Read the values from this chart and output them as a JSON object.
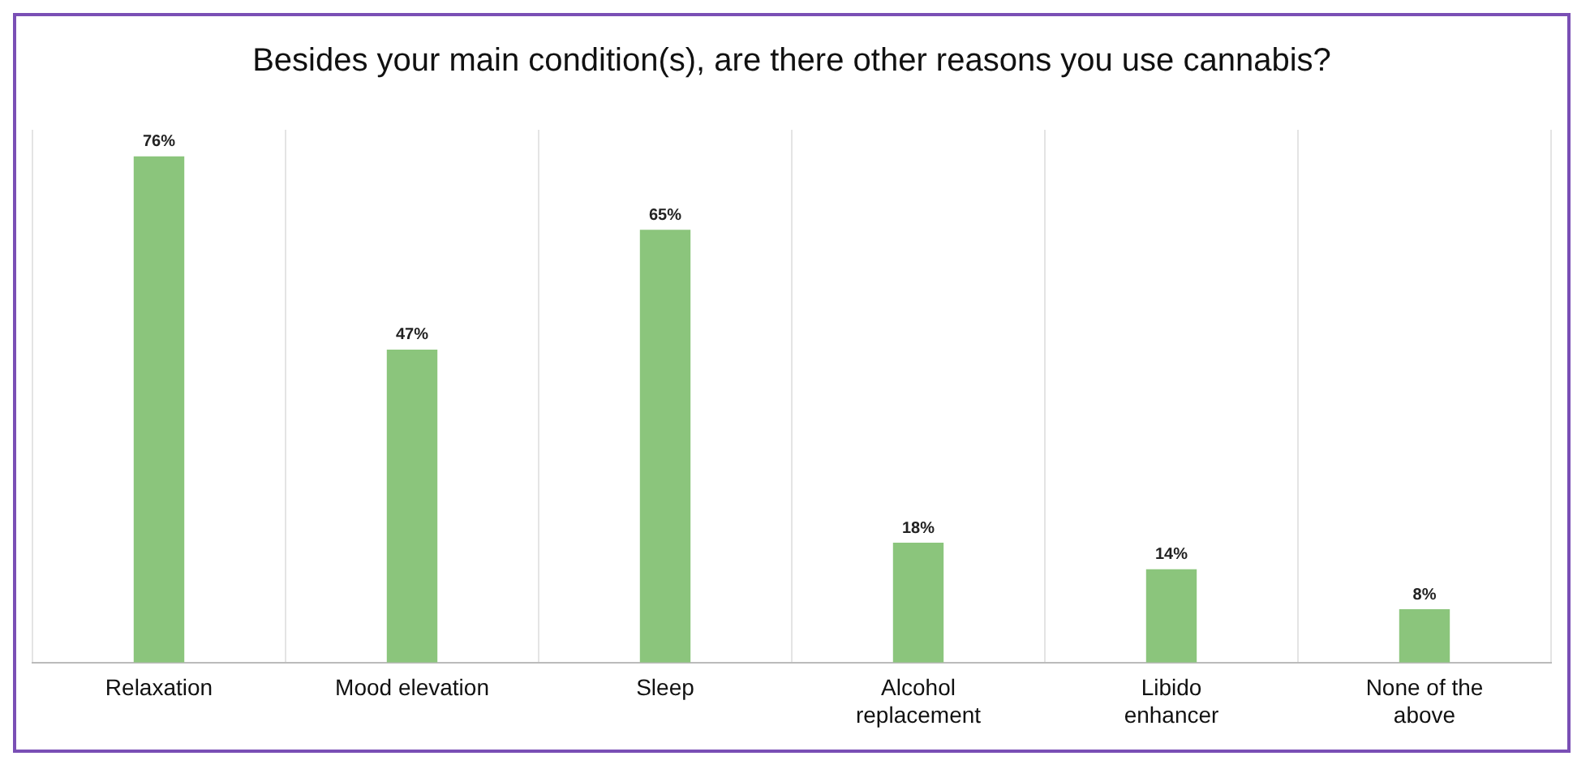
{
  "chart_data": {
    "type": "bar",
    "title": "Besides your main condition(s), are there other reasons you use cannabis?",
    "categories": [
      "Relaxation",
      "Mood elevation",
      "Sleep",
      "Alcohol replacement",
      "Libido enhancer",
      "None of the above"
    ],
    "values": [
      76,
      47,
      65,
      18,
      14,
      8
    ],
    "value_labels": [
      "76%",
      "47%",
      "65%",
      "18%",
      "14%",
      "8%"
    ],
    "color": "#8bc57c",
    "grid": "x"
  }
}
